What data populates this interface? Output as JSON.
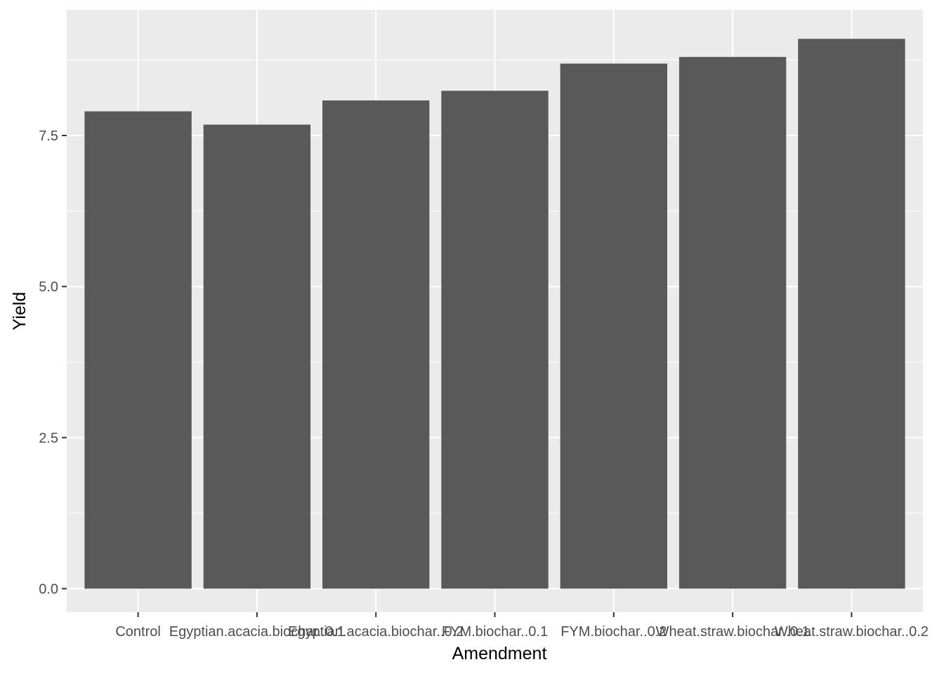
{
  "chart_data": {
    "type": "bar",
    "title": "",
    "xlabel": "Amendment",
    "ylabel": "Yield",
    "categories": [
      "Control",
      "Egyptian.acacia.biochar..0.1",
      "Egyptian.acacia.biochar..0.2",
      "FYM.biochar..0.1",
      "FYM.biochar..0.2",
      "Wheat.straw.biochar..0.1",
      "Wheat.straw.biochar..0.2"
    ],
    "values": [
      7.9,
      7.68,
      8.08,
      8.24,
      8.69,
      8.8,
      9.1
    ],
    "ylim": [
      -0.39,
      9.58
    ],
    "yticks": [
      0.0,
      2.5,
      5.0,
      7.5
    ],
    "ytick_labels": [
      "0.0",
      "2.5",
      "5.0",
      "7.5"
    ],
    "grid": true,
    "legend": "none"
  },
  "colors": {
    "panel": "#ebebeb",
    "grid": "#ffffff",
    "bar": "#595959",
    "tick": "#333333",
    "tick_text": "#4d4d4d",
    "title_text": "#000000"
  }
}
